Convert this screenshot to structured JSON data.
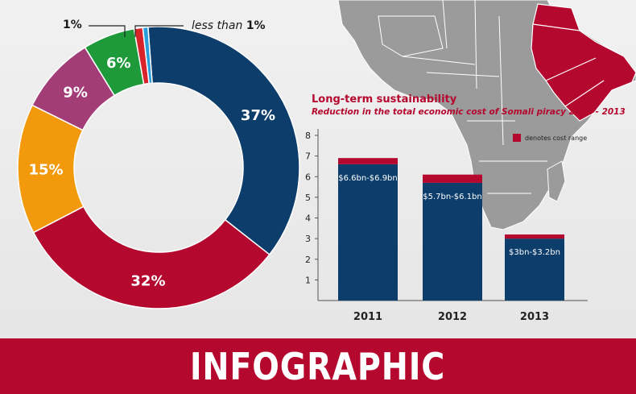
{
  "banner": {
    "title": "INFOGRAPHIC"
  },
  "colors": {
    "navy": "#0d3d6b",
    "crimson": "#b5082f",
    "orange": "#f29a0c",
    "purple": "#a33d78",
    "green": "#1e9a3b",
    "red": "#d8232a",
    "lightblue": "#2a9ddb",
    "map_land": "#9b9b9b",
    "map_highlight": "#b5082f"
  },
  "map": {
    "legend_label": "denotes cost range"
  },
  "chart_data": [
    {
      "type": "pie",
      "style": "donut",
      "slices": [
        {
          "label": "37%",
          "value": 37,
          "color": "#0d3d6b"
        },
        {
          "label": "32%",
          "value": 32,
          "color": "#b5082f"
        },
        {
          "label": "15%",
          "value": 15,
          "color": "#f29a0c"
        },
        {
          "label": "9%",
          "value": 9,
          "color": "#a33d78"
        },
        {
          "label": "6%",
          "value": 6,
          "color": "#1e9a3b"
        },
        {
          "label": "1%",
          "value": 1,
          "color": "#d8232a"
        },
        {
          "label": "less than 1%",
          "value": 0.6,
          "color": "#2a9ddb"
        }
      ],
      "callouts": {
        "one_percent": "1%",
        "less_than_prefix": "less than",
        "less_than_value": "1%"
      }
    },
    {
      "type": "bar",
      "stacked": true,
      "title": "Long-term sustainability",
      "subtitle": "Reduction in the total economic cost of Somali piracy 2011 - 2013",
      "categories": [
        "2011",
        "2012",
        "2013"
      ],
      "series": [
        {
          "values": [
            6.6,
            5.7,
            3.0
          ],
          "color": "#0d3d6b"
        },
        {
          "values": [
            0.3,
            0.4,
            0.2
          ],
          "color": "#b5082f"
        }
      ],
      "data_labels": [
        "$6.6bn-$6.9bn",
        "$5.7bn-$6.1bn",
        "$3bn-$3.2bn"
      ],
      "yticks": [
        "1",
        "2",
        "3",
        "4",
        "5",
        "6",
        "7",
        "8"
      ],
      "ylim": [
        0,
        8
      ],
      "legend": {
        "label": "denotes cost range",
        "placement": "top-right"
      }
    }
  ]
}
